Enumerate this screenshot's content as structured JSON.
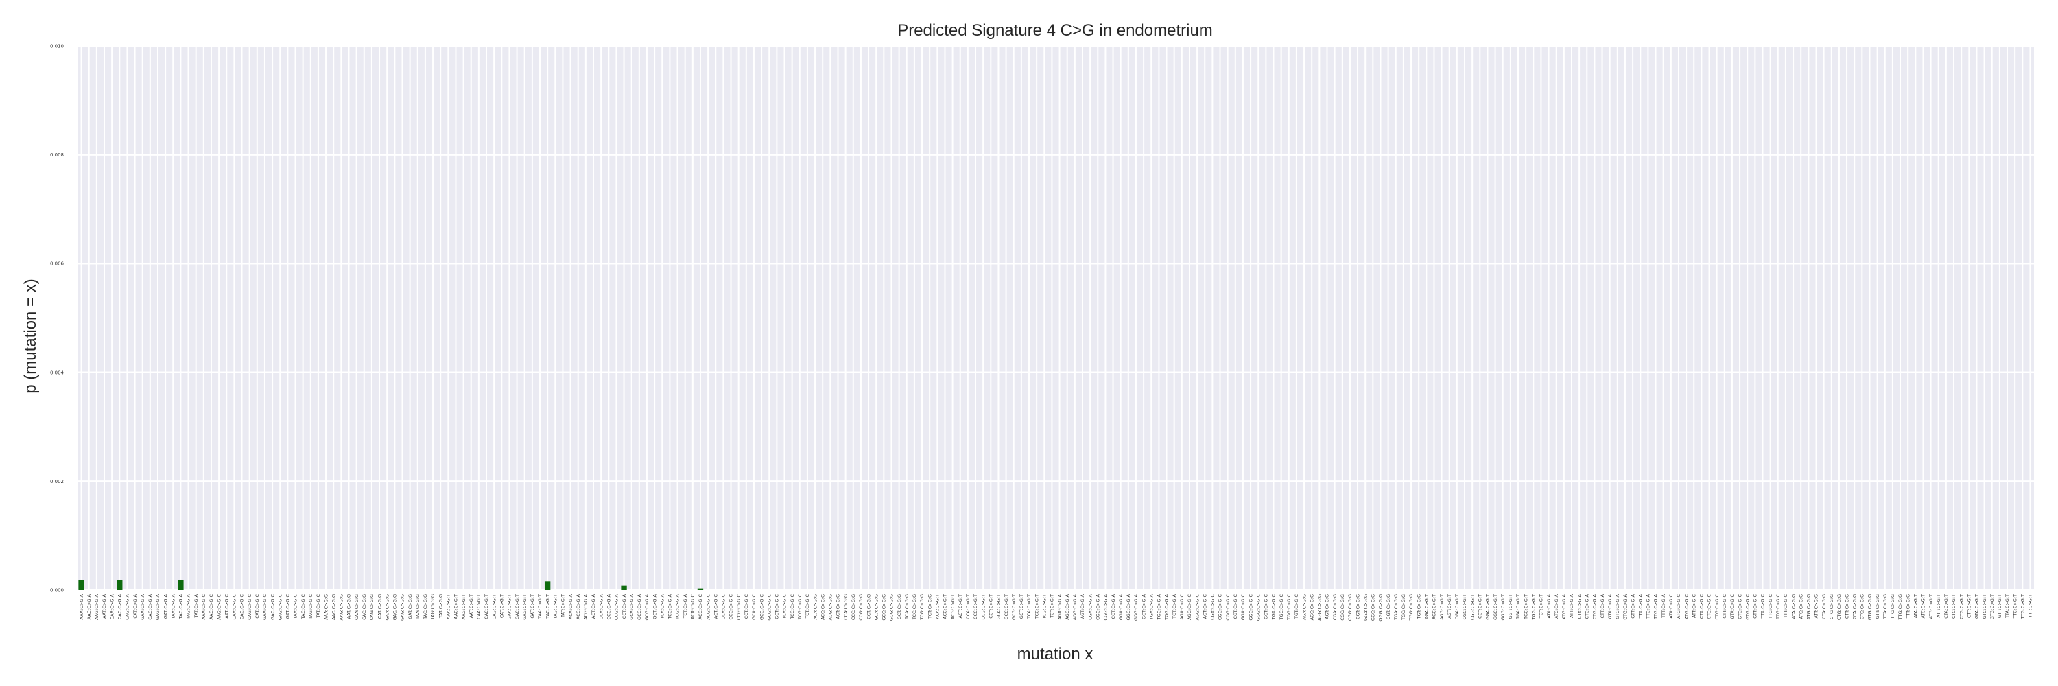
{
  "chart_data": {
    "type": "bar",
    "title": "Predicted Signature 4 C>G in endometrium",
    "xlabel": "mutation x",
    "ylabel": "p (mutation = x)",
    "ylim": [
      0,
      0.01
    ],
    "yticks": [
      "0.000",
      "0.002",
      "0.004",
      "0.006",
      "0.008",
      "0.010"
    ],
    "grid": true,
    "bar_color": "#0e6b0e",
    "background_color": "#eaeaf2",
    "grid_color": "#ffffff",
    "categories": [
      "AAA:C>G:A",
      "AAC:C>G:A",
      "AAG:C>G:A",
      "AAT:C>G:A",
      "CAA:C>G:A",
      "CAC:C>G:A",
      "CAG:C>G:A",
      "CAT:C>G:A",
      "GAA:C>G:A",
      "GAC:C>G:A",
      "GAG:C>G:A",
      "GAT:C>G:A",
      "TAA:C>G:A",
      "TAC:C>G:A",
      "TAG:C>G:A",
      "TAT:C>G:A",
      "AAA:C>G:C",
      "AAC:C>G:C",
      "AAG:C>G:C",
      "AAT:C>G:C",
      "CAA:C>G:C",
      "CAC:C>G:C",
      "CAG:C>G:C",
      "CAT:C>G:C",
      "GAA:C>G:C",
      "GAC:C>G:C",
      "GAG:C>G:C",
      "GAT:C>G:C",
      "TAA:C>G:C",
      "TAC:C>G:C",
      "TAG:C>G:C",
      "TAT:C>G:C",
      "AAA:C>G:G",
      "AAC:C>G:G",
      "AAG:C>G:G",
      "AAT:C>G:G",
      "CAA:C>G:G",
      "CAC:C>G:G",
      "CAG:C>G:G",
      "CAT:C>G:G",
      "GAA:C>G:G",
      "GAC:C>G:G",
      "GAG:C>G:G",
      "GAT:C>G:G",
      "TAA:C>G:G",
      "TAC:C>G:G",
      "TAG:C>G:G",
      "TAT:C>G:G",
      "AAA:C>G:T",
      "AAC:C>G:T",
      "AAG:C>G:T",
      "AAT:C>G:T",
      "CAA:C>G:T",
      "CAC:C>G:T",
      "CAG:C>G:T",
      "CAT:C>G:T",
      "GAA:C>G:T",
      "GAC:C>G:T",
      "GAG:C>G:T",
      "GAT:C>G:T",
      "TAA:C>G:T",
      "TAC:C>G:T",
      "TAG:C>G:T",
      "TAT:C>G:T",
      "ACA:C>G:A",
      "ACC:C>G:A",
      "ACG:C>G:A",
      "ACT:C>G:A",
      "CCA:C>G:A",
      "CCC:C>G:A",
      "CCG:C>G:A",
      "CCT:C>G:A",
      "GCA:C>G:A",
      "GCC:C>G:A",
      "GCG:C>G:A",
      "GCT:C>G:A",
      "TCA:C>G:A",
      "TCC:C>G:A",
      "TCG:C>G:A",
      "TCT:C>G:A",
      "ACA:C>G:C",
      "ACC:C>G:C",
      "ACG:C>G:C",
      "ACT:C>G:C",
      "CCA:C>G:C",
      "CCC:C>G:C",
      "CCG:C>G:C",
      "CCT:C>G:C",
      "GCA:C>G:C",
      "GCC:C>G:C",
      "GCG:C>G:C",
      "GCT:C>G:C",
      "TCA:C>G:C",
      "TCC:C>G:C",
      "TCG:C>G:C",
      "TCT:C>G:C",
      "ACA:C>G:G",
      "ACC:C>G:G",
      "ACG:C>G:G",
      "ACT:C>G:G",
      "CCA:C>G:G",
      "CCC:C>G:G",
      "CCG:C>G:G",
      "CCT:C>G:G",
      "GCA:C>G:G",
      "GCC:C>G:G",
      "GCG:C>G:G",
      "GCT:C>G:G",
      "TCA:C>G:G",
      "TCC:C>G:G",
      "TCG:C>G:G",
      "TCT:C>G:G",
      "ACA:C>G:T",
      "ACC:C>G:T",
      "ACG:C>G:T",
      "ACT:C>G:T",
      "CCA:C>G:T",
      "CCC:C>G:T",
      "CCG:C>G:T",
      "CCT:C>G:T",
      "GCA:C>G:T",
      "GCC:C>G:T",
      "GCG:C>G:T",
      "GCT:C>G:T",
      "TCA:C>G:T",
      "TCC:C>G:T",
      "TCG:C>G:T",
      "TCT:C>G:T",
      "AGA:C>G:A",
      "AGC:C>G:A",
      "AGG:C>G:A",
      "AGT:C>G:A",
      "CGA:C>G:A",
      "CGC:C>G:A",
      "CGG:C>G:A",
      "CGT:C>G:A",
      "GGA:C>G:A",
      "GGC:C>G:A",
      "GGG:C>G:A",
      "GGT:C>G:A",
      "TGA:C>G:A",
      "TGC:C>G:A",
      "TGG:C>G:A",
      "TGT:C>G:A",
      "AGA:C>G:C",
      "AGC:C>G:C",
      "AGG:C>G:C",
      "AGT:C>G:C",
      "CGA:C>G:C",
      "CGC:C>G:C",
      "CGG:C>G:C",
      "CGT:C>G:C",
      "GGA:C>G:C",
      "GGC:C>G:C",
      "GGG:C>G:C",
      "GGT:C>G:C",
      "TGA:C>G:C",
      "TGC:C>G:C",
      "TGG:C>G:C",
      "TGT:C>G:C",
      "AGA:C>G:G",
      "AGC:C>G:G",
      "AGG:C>G:G",
      "AGT:C>G:G",
      "CGA:C>G:G",
      "CGC:C>G:G",
      "CGG:C>G:G",
      "CGT:C>G:G",
      "GGA:C>G:G",
      "GGC:C>G:G",
      "GGG:C>G:G",
      "GGT:C>G:G",
      "TGA:C>G:G",
      "TGC:C>G:G",
      "TGG:C>G:G",
      "TGT:C>G:G",
      "AGA:C>G:T",
      "AGC:C>G:T",
      "AGG:C>G:T",
      "AGT:C>G:T",
      "CGA:C>G:T",
      "CGC:C>G:T",
      "CGG:C>G:T",
      "CGT:C>G:T",
      "GGA:C>G:T",
      "GGC:C>G:T",
      "GGG:C>G:T",
      "GGT:C>G:T",
      "TGA:C>G:T",
      "TGC:C>G:T",
      "TGG:C>G:T",
      "TGT:C>G:T",
      "ATA:C>G:A",
      "ATC:C>G:A",
      "ATG:C>G:A",
      "ATT:C>G:A",
      "CTA:C>G:A",
      "CTC:C>G:A",
      "CTG:C>G:A",
      "CTT:C>G:A",
      "GTA:C>G:A",
      "GTC:C>G:A",
      "GTG:C>G:A",
      "GTT:C>G:A",
      "TTA:C>G:A",
      "TTC:C>G:A",
      "TTG:C>G:A",
      "TTT:C>G:A",
      "ATA:C>G:C",
      "ATC:C>G:C",
      "ATG:C>G:C",
      "ATT:C>G:C",
      "CTA:C>G:C",
      "CTC:C>G:C",
      "CTG:C>G:C",
      "CTT:C>G:C",
      "GTA:C>G:C",
      "GTC:C>G:C",
      "GTG:C>G:C",
      "GTT:C>G:C",
      "TTA:C>G:C",
      "TTC:C>G:C",
      "TTG:C>G:C",
      "TTT:C>G:C",
      "ATA:C>G:G",
      "ATC:C>G:G",
      "ATG:C>G:G",
      "ATT:C>G:G",
      "CTA:C>G:G",
      "CTC:C>G:G",
      "CTG:C>G:G",
      "CTT:C>G:G",
      "GTA:C>G:G",
      "GTC:C>G:G",
      "GTG:C>G:G",
      "GTT:C>G:G",
      "TTA:C>G:G",
      "TTC:C>G:G",
      "TTG:C>G:G",
      "TTT:C>G:G",
      "ATA:C>G:T",
      "ATC:C>G:T",
      "ATG:C>G:T",
      "ATT:C>G:T",
      "CTA:C>G:T",
      "CTC:C>G:T",
      "CTG:C>G:T",
      "CTT:C>G:T",
      "GTA:C>G:T",
      "GTC:C>G:T",
      "GTG:C>G:T",
      "GTT:C>G:T",
      "TTA:C>G:T",
      "TTC:C>G:T",
      "TTG:C>G:T",
      "TTT:C>G:T"
    ],
    "values": [
      0.00018,
      0,
      0,
      0,
      0,
      0.00018,
      0,
      0,
      0,
      0,
      0,
      0,
      0,
      0.00018,
      0,
      0,
      0,
      0,
      0,
      0,
      0,
      0,
      0,
      0,
      0,
      0,
      0,
      0,
      0,
      0,
      0,
      0,
      0,
      0,
      0,
      0,
      0,
      0,
      0,
      0,
      0,
      0,
      0,
      0,
      0,
      0,
      0,
      0,
      0,
      0,
      0,
      0,
      0,
      0,
      0,
      0,
      0,
      0,
      0,
      0,
      0,
      0.00016,
      0,
      0,
      0,
      0,
      0,
      0,
      0,
      0,
      0,
      8e-05,
      0,
      0,
      0,
      0,
      0,
      0,
      0,
      0,
      0,
      3e-05,
      0,
      0,
      0,
      0,
      0,
      0,
      0,
      0,
      0,
      0,
      0,
      0,
      0,
      0,
      0,
      0,
      0,
      0,
      0,
      0,
      0,
      0,
      0,
      0,
      0,
      0,
      0,
      0,
      0,
      0,
      0,
      0,
      0,
      0,
      0,
      0,
      0,
      0,
      0,
      0,
      0,
      0,
      0,
      0,
      0,
      0,
      0,
      0,
      0,
      0,
      0,
      0,
      0,
      0,
      0,
      0,
      0,
      0,
      0,
      0,
      0,
      0,
      0,
      0,
      0,
      0,
      0,
      0,
      0,
      0,
      0,
      0,
      0,
      0,
      0,
      0,
      0,
      0,
      0,
      0,
      0,
      0,
      0,
      0,
      0,
      0,
      0,
      0,
      0,
      0,
      0,
      0,
      0,
      0,
      0,
      0,
      0,
      0,
      0,
      0,
      0,
      0,
      0,
      0,
      0,
      0,
      0,
      0,
      0,
      0,
      0,
      0,
      0,
      0,
      0,
      0,
      0,
      0,
      0,
      0,
      0,
      0,
      0,
      0,
      0,
      0,
      0,
      0,
      0,
      0,
      0,
      0,
      0,
      0,
      0,
      0,
      0,
      0,
      0,
      0,
      0,
      0,
      0,
      0,
      0,
      0,
      0,
      0,
      0,
      0,
      0,
      0,
      0,
      0,
      0,
      0,
      0,
      0,
      0,
      0,
      0,
      0,
      0,
      0,
      0,
      0,
      0,
      0,
      0,
      0,
      0,
      0,
      0,
      0
    ]
  }
}
